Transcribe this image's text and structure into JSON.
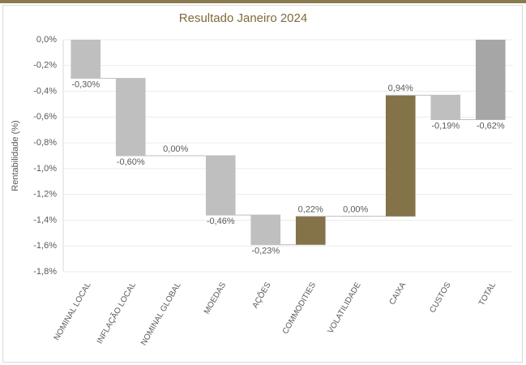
{
  "chart_data": {
    "type": "waterfall",
    "title": "Resultado Janeiro 2024",
    "y_label": "Rentabilidade (%)",
    "categories": [
      "NOMINAL LOCAL",
      "INFLAÇÃO LOCAL",
      "NOMINAL GLOBAL",
      "MOEDAS",
      "AÇÕES",
      "COMMODITIES",
      "VOLATILIDADE",
      "CAIXA",
      "CUSTOS",
      "TOTAL"
    ],
    "values": [
      -0.3,
      -0.6,
      0.0,
      -0.46,
      -0.23,
      0.22,
      0.0,
      0.94,
      -0.19,
      -0.62
    ],
    "value_labels": [
      "-0,30%",
      "-0,60%",
      "0,00%",
      "-0,46%",
      "-0,23%",
      "0,22%",
      "0,00%",
      "0,94%",
      "-0,19%",
      "-0,62%"
    ],
    "colors": [
      "#bfbfbf",
      "#bfbfbf",
      "#bfbfbf",
      "#bfbfbf",
      "#bfbfbf",
      "#847349",
      "#bfbfbf",
      "#847349",
      "#bfbfbf",
      "#a6a6a6"
    ],
    "ylim": [
      -1.8,
      0
    ],
    "yticks": [
      {
        "value": 0,
        "label": "0,0%"
      },
      {
        "value": -0.2,
        "label": "-0,2%"
      },
      {
        "value": -0.4,
        "label": "-0,4%"
      },
      {
        "value": -0.6,
        "label": "-0,6%"
      },
      {
        "value": -0.8,
        "label": "-0,8%"
      },
      {
        "value": -1.0,
        "label": "-1,0%"
      },
      {
        "value": -1.2,
        "label": "-1,2%"
      },
      {
        "value": -1.4,
        "label": "-1,4%"
      },
      {
        "value": -1.6,
        "label": "-1,6%"
      },
      {
        "value": -1.8,
        "label": "-1,8%"
      }
    ],
    "grid": true
  }
}
